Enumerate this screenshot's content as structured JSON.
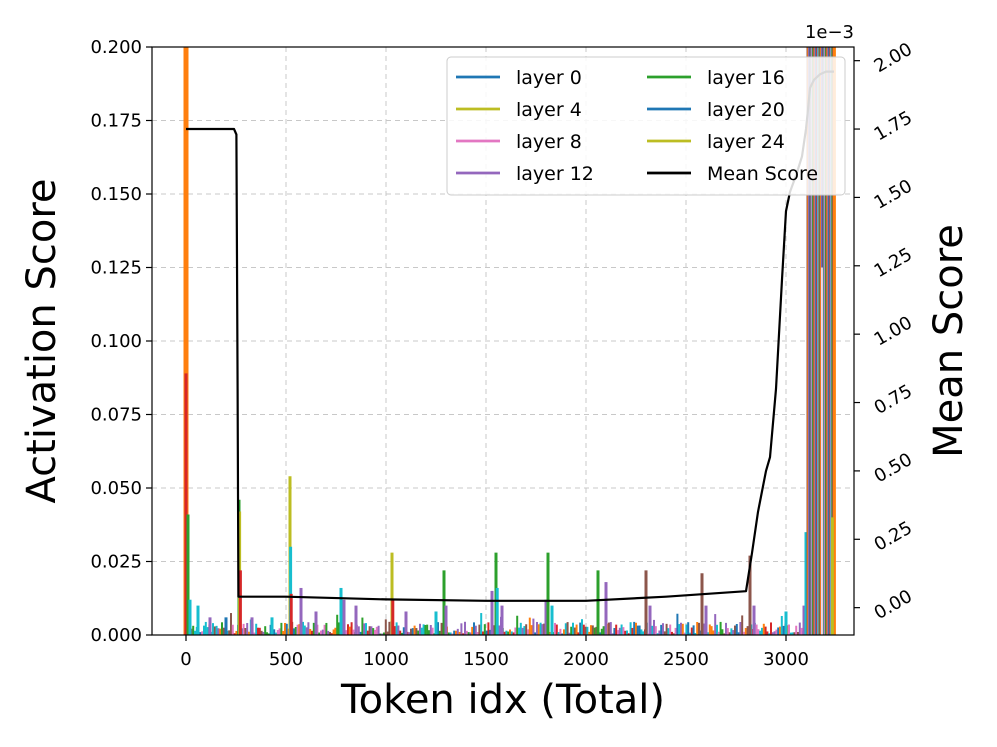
{
  "chart_data": {
    "type": "line",
    "title": "",
    "xlabel": "Token idx (Total)",
    "ylabel": "Activation Score",
    "y2label": "Mean Score",
    "y2_offset_text": "1e−3",
    "xlim": [
      -170,
      3340
    ],
    "ylim": [
      0,
      0.2
    ],
    "y2lim": [
      -0.1,
      2.05
    ],
    "xticks": [
      0,
      500,
      1000,
      1500,
      2000,
      2500,
      3000
    ],
    "yticks": [
      0.0,
      0.025,
      0.05,
      0.075,
      0.1,
      0.125,
      0.15,
      0.175,
      0.2
    ],
    "ytick_labels": [
      "0.000",
      "0.025",
      "0.050",
      "0.075",
      "0.100",
      "0.125",
      "0.150",
      "0.175",
      "0.200"
    ],
    "y2ticks": [
      0.0,
      0.25,
      0.5,
      0.75,
      1.0,
      1.25,
      1.5,
      1.75,
      2.0
    ],
    "y2tick_labels": [
      "0.00",
      "0.25",
      "0.50",
      "0.75",
      "1.00",
      "1.25",
      "1.50",
      "1.75",
      "2.00"
    ],
    "grid": true,
    "legend_position": "top-right",
    "colors": {
      "layer 0": "#1f77b4",
      "layer 4": "#bcbd22",
      "layer 8": "#e377c2",
      "layer 12": "#9467bd",
      "layer 16": "#2ca02c",
      "layer 20": "#1f77b4",
      "layer 24": "#bcbd22",
      "Mean Score": "#000000",
      "extra_orange": "#ff7f0e",
      "extra_red": "#d62728",
      "extra_cyan": "#17becf",
      "extra_brown": "#8c564b"
    },
    "legend": [
      "layer 0",
      "layer 4",
      "layer 8",
      "layer 12",
      "layer 16",
      "layer 20",
      "layer 24",
      "Mean Score"
    ],
    "spikes": [
      {
        "x": 0,
        "value": 0.2,
        "color": "#ff7f0e"
      },
      {
        "x": 0,
        "value": 0.089,
        "color": "#d62728"
      },
      {
        "x": 10,
        "value": 0.041,
        "color": "#2ca02c"
      },
      {
        "x": 20,
        "value": 0.012,
        "color": "#17becf"
      },
      {
        "x": 60,
        "value": 0.01,
        "color": "#17becf"
      },
      {
        "x": 120,
        "value": 0.006,
        "color": "#9467bd"
      },
      {
        "x": 200,
        "value": 0.006,
        "color": "#1f77b4"
      },
      {
        "x": 265,
        "value": 0.046,
        "color": "#2ca02c"
      },
      {
        "x": 268,
        "value": 0.042,
        "color": "#bcbd22"
      },
      {
        "x": 272,
        "value": 0.022,
        "color": "#d62728"
      },
      {
        "x": 330,
        "value": 0.006,
        "color": "#9467bd"
      },
      {
        "x": 430,
        "value": 0.006,
        "color": "#17becf"
      },
      {
        "x": 520,
        "value": 0.054,
        "color": "#bcbd22"
      },
      {
        "x": 523,
        "value": 0.03,
        "color": "#17becf"
      },
      {
        "x": 526,
        "value": 0.014,
        "color": "#d62728"
      },
      {
        "x": 575,
        "value": 0.016,
        "color": "#9467bd"
      },
      {
        "x": 650,
        "value": 0.008,
        "color": "#9467bd"
      },
      {
        "x": 775,
        "value": 0.016,
        "color": "#17becf"
      },
      {
        "x": 790,
        "value": 0.012,
        "color": "#9467bd"
      },
      {
        "x": 850,
        "value": 0.01,
        "color": "#9467bd"
      },
      {
        "x": 1030,
        "value": 0.028,
        "color": "#bcbd22"
      },
      {
        "x": 1034,
        "value": 0.012,
        "color": "#d62728"
      },
      {
        "x": 1100,
        "value": 0.008,
        "color": "#9467bd"
      },
      {
        "x": 1250,
        "value": 0.008,
        "color": "#17becf"
      },
      {
        "x": 1290,
        "value": 0.022,
        "color": "#2ca02c"
      },
      {
        "x": 1300,
        "value": 0.01,
        "color": "#9467bd"
      },
      {
        "x": 1530,
        "value": 0.015,
        "color": "#9467bd"
      },
      {
        "x": 1550,
        "value": 0.028,
        "color": "#2ca02c"
      },
      {
        "x": 1556,
        "value": 0.016,
        "color": "#17becf"
      },
      {
        "x": 1580,
        "value": 0.01,
        "color": "#9467bd"
      },
      {
        "x": 1800,
        "value": 0.012,
        "color": "#9467bd"
      },
      {
        "x": 1810,
        "value": 0.028,
        "color": "#2ca02c"
      },
      {
        "x": 1830,
        "value": 0.01,
        "color": "#17becf"
      },
      {
        "x": 2060,
        "value": 0.022,
        "color": "#2ca02c"
      },
      {
        "x": 2100,
        "value": 0.018,
        "color": "#9467bd"
      },
      {
        "x": 2300,
        "value": 0.022,
        "color": "#8c564b"
      },
      {
        "x": 2320,
        "value": 0.01,
        "color": "#9467bd"
      },
      {
        "x": 2580,
        "value": 0.021,
        "color": "#8c564b"
      },
      {
        "x": 2600,
        "value": 0.01,
        "color": "#9467bd"
      },
      {
        "x": 2820,
        "value": 0.027,
        "color": "#8c564b"
      },
      {
        "x": 2840,
        "value": 0.01,
        "color": "#9467bd"
      },
      {
        "x": 3000,
        "value": 0.008,
        "color": "#17becf"
      },
      {
        "x": 3090,
        "value": 0.01,
        "color": "#9467bd"
      },
      {
        "x": 3100,
        "value": 0.035,
        "color": "#17becf"
      }
    ],
    "dense_block": {
      "x_start": 3110,
      "x_end": 3245,
      "colors": [
        "#8c564b",
        "#ff7f0e",
        "#9467bd",
        "#1f77b4",
        "#d62728",
        "#17becf",
        "#e377c2",
        "#2ca02c"
      ]
    },
    "mean_score": {
      "x": [
        0,
        240,
        252,
        258,
        262,
        500,
        1000,
        1500,
        2000,
        2400,
        2800,
        2830,
        2860,
        2900,
        2920,
        2950,
        2980,
        3000,
        3020,
        3050,
        3080,
        3100,
        3110,
        3120,
        3140,
        3170,
        3200,
        3240
      ],
      "y": [
        1.75,
        1.75,
        1.73,
        0.8,
        0.04,
        0.04,
        0.03,
        0.025,
        0.025,
        0.04,
        0.06,
        0.2,
        0.35,
        0.5,
        0.55,
        0.8,
        1.2,
        1.45,
        1.52,
        1.58,
        1.65,
        1.75,
        1.82,
        1.9,
        1.93,
        1.95,
        1.96,
        1.96
      ]
    }
  }
}
